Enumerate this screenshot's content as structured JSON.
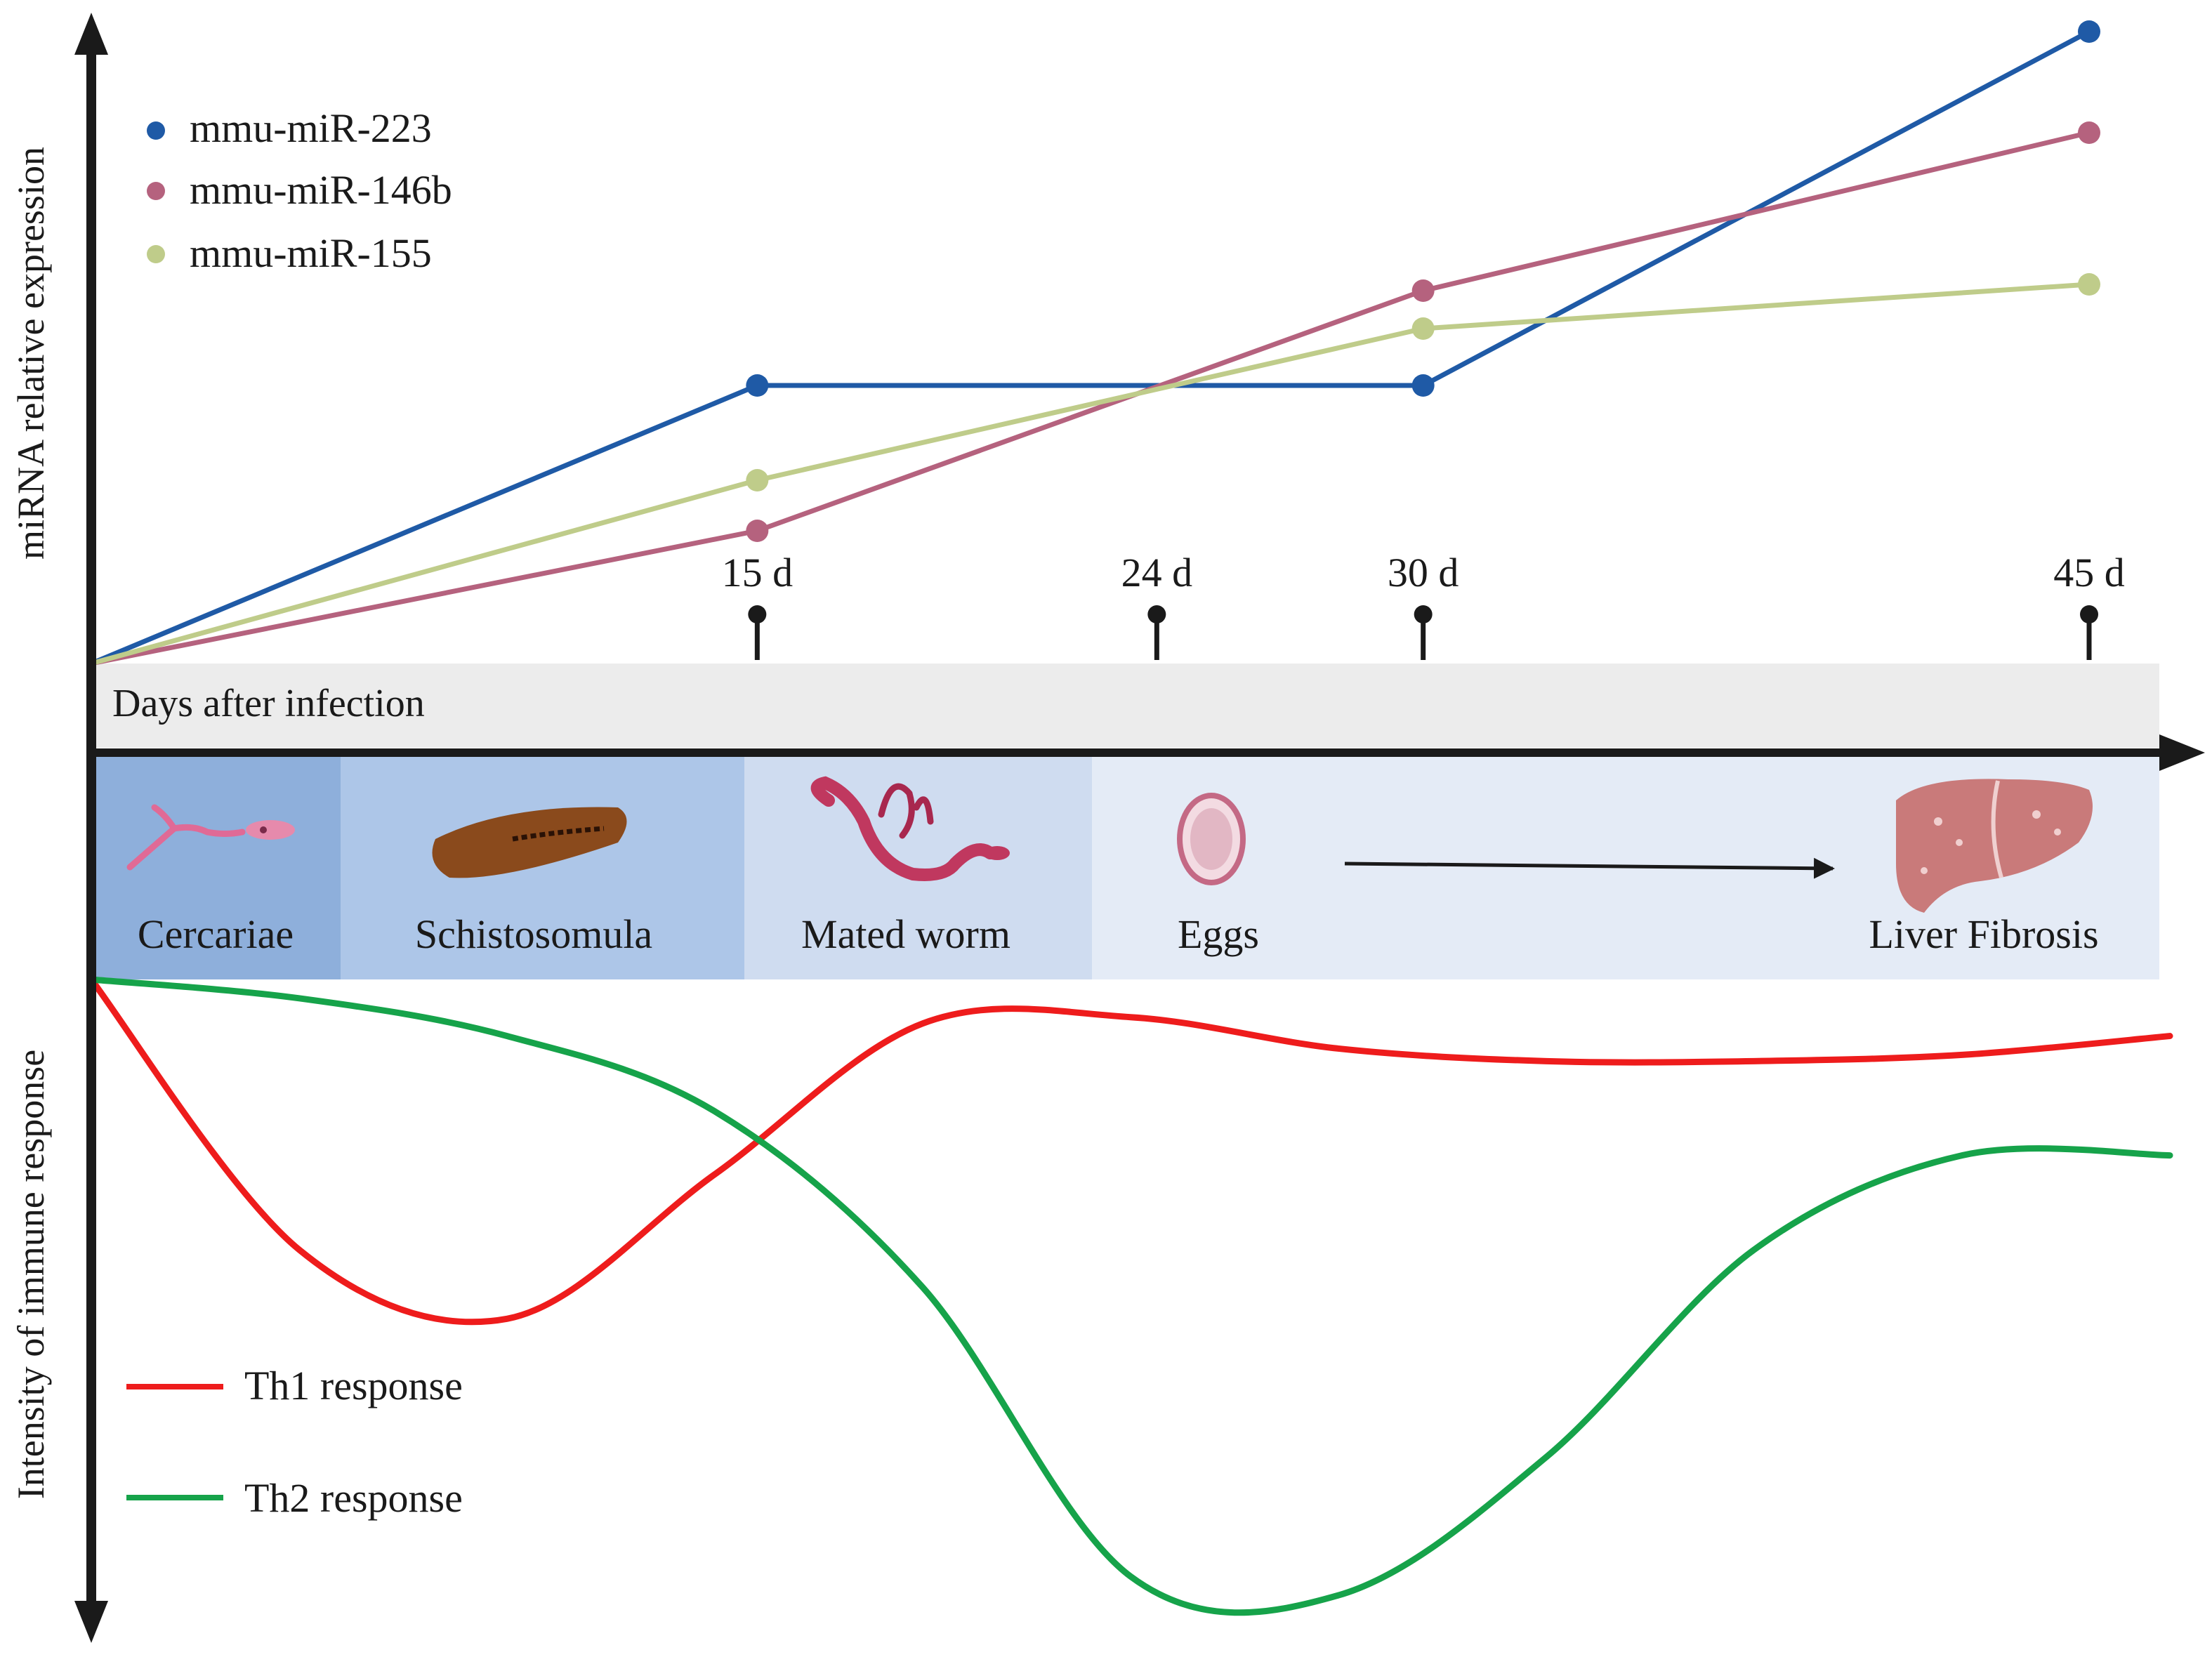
{
  "chart_data": [
    {
      "type": "line",
      "ylabel": "miRNA relative expression",
      "xlabel": "Days after infection",
      "x": [
        0,
        15,
        30,
        45
      ],
      "milestones": [
        15,
        24,
        30,
        45
      ],
      "milestone_labels": [
        "15 d",
        "24 d",
        "30 d",
        "45 d"
      ],
      "legend_position": "top-left",
      "series": [
        {
          "name": "mmu-miR-223",
          "color": "#1f5aa6",
          "values": [
            0,
            0.44,
            0.44,
            1.0
          ]
        },
        {
          "name": "mmu-miR-146b",
          "color": "#b5627e",
          "values": [
            0,
            0.21,
            0.59,
            0.84
          ]
        },
        {
          "name": "mmu-miR-155",
          "color": "#bfcc8a",
          "values": [
            0,
            0.29,
            0.53,
            0.6
          ]
        }
      ]
    },
    {
      "type": "line",
      "ylabel": "Intensity of immune response",
      "legend_position": "bottom-left",
      "series": [
        {
          "name": "Th1 response",
          "color": "#ee1c1c",
          "x": [
            0,
            5,
            10,
            15,
            20,
            25,
            30,
            35,
            40,
            45,
            50
          ],
          "values": [
            1.0,
            0.57,
            0.46,
            0.69,
            0.93,
            0.94,
            0.89,
            0.87,
            0.87,
            0.88,
            0.91
          ]
        },
        {
          "name": "Th2 response",
          "color": "#16a34a",
          "x": [
            0,
            5,
            10,
            15,
            20,
            25,
            30,
            35,
            40,
            45,
            50
          ],
          "values": [
            1.0,
            0.97,
            0.91,
            0.79,
            0.51,
            0.05,
            0.02,
            0.24,
            0.57,
            0.72,
            0.72
          ]
        }
      ]
    }
  ],
  "stages": [
    {
      "label": "Cercariae",
      "fill": "#8eafdb",
      "icon": "cercariae-icon"
    },
    {
      "label": "Schistosomula",
      "fill": "#adc6e8",
      "icon": "schistosomula-icon"
    },
    {
      "label": "Mated worm",
      "fill": "#cfdcf0",
      "icon": "mated-worm-icon"
    },
    {
      "label": "Eggs",
      "fill": "#e4ebf6",
      "icon": "egg-icon"
    },
    {
      "label": "Liver Fibrosis",
      "fill": "#e4ebf6",
      "icon": "liver-icon"
    }
  ],
  "colors": {
    "axis": "#1a1a1a",
    "timeline_band": "#ececec",
    "stage_arrow": "#1a1a1a"
  }
}
